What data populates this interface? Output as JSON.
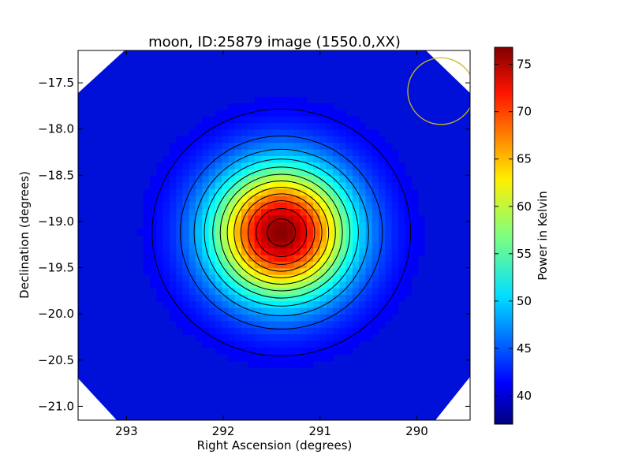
{
  "chart_data": {
    "type": "heatmap",
    "title": "moon, ID:25879 image (1550.0,XX)",
    "xlabel": "Right Ascension (degrees)",
    "ylabel": "Declination (degrees)",
    "colorbar_label": "Power in Kelvin",
    "xlim": [
      293.5,
      289.45
    ],
    "ylim": [
      -21.15,
      -17.15
    ],
    "x_ticks": [
      293,
      292,
      291,
      290
    ],
    "x_tick_labels": [
      "293",
      "292",
      "291",
      "290"
    ],
    "y_ticks": [
      -17.5,
      -18.0,
      -18.5,
      -19.0,
      -19.5,
      -20.0,
      -20.5,
      -21.0
    ],
    "y_tick_labels": [
      "−17.5",
      "−18.0",
      "−18.5",
      "−19.0",
      "−19.5",
      "−20.0",
      "−20.5",
      "−21.0"
    ],
    "colorbar_range": [
      37,
      76.8
    ],
    "colorbar_ticks": [
      40,
      45,
      50,
      55,
      60,
      65,
      70,
      75
    ],
    "colorbar_tick_labels": [
      "40",
      "45",
      "50",
      "55",
      "60",
      "65",
      "70",
      "75"
    ],
    "colormap": "jet",
    "source_peak": {
      "ra": 291.4,
      "dec": -19.12,
      "value_k": 76.5
    },
    "background_k": 41,
    "contour_levels_k": [
      42,
      45,
      48,
      51,
      54,
      57,
      60,
      63,
      66,
      69,
      72,
      75
    ],
    "beam_circle": {
      "ra": 289.75,
      "dec": -17.59,
      "radius_deg": 0.36,
      "color": "#c8b820"
    },
    "contour_color": "#000000",
    "grid": false
  }
}
